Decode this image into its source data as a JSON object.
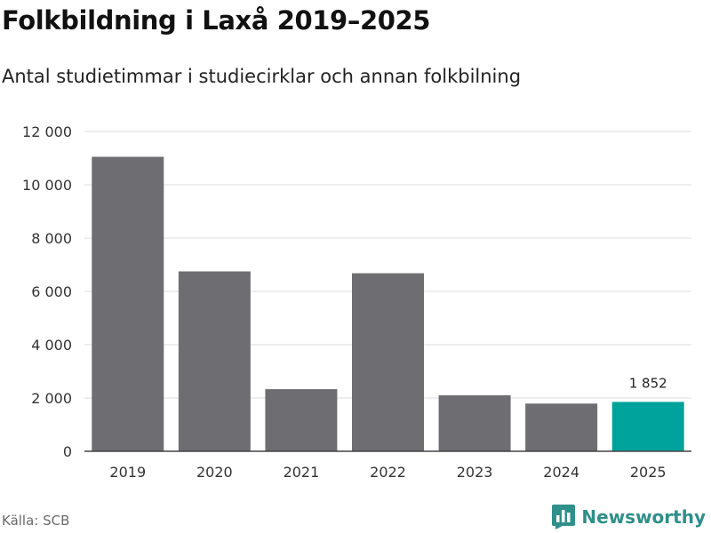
{
  "title": "Folkbildning i Laxå 2019–2025",
  "subtitle": "Antal studietimmar i studiecirklar och annan folkbilning",
  "source": "Källa: SCB",
  "brand": {
    "name": "Newsworthy",
    "icon": "newsworthy-logo-icon",
    "color": "#2f8f8a"
  },
  "chart_data": {
    "type": "bar",
    "categories": [
      "2019",
      "2020",
      "2021",
      "2022",
      "2023",
      "2024",
      "2025"
    ],
    "values": [
      11050,
      6750,
      2330,
      6680,
      2100,
      1790,
      1852
    ],
    "highlight_index": 6,
    "data_labels": [
      {
        "index": 6,
        "text": "1 852"
      }
    ],
    "ylim": [
      0,
      12000
    ],
    "yticks": [
      0,
      2000,
      4000,
      6000,
      8000,
      10000,
      12000
    ],
    "ytick_labels": [
      "0",
      "2 000",
      "4 000",
      "6 000",
      "8 000",
      "10 000",
      "12 000"
    ],
    "xlabel": "",
    "ylabel": "",
    "grid": true,
    "colors": {
      "bar": "#6e6d72",
      "highlight": "#00a39b",
      "grid": "#dddddd",
      "axis": "#444444"
    }
  }
}
